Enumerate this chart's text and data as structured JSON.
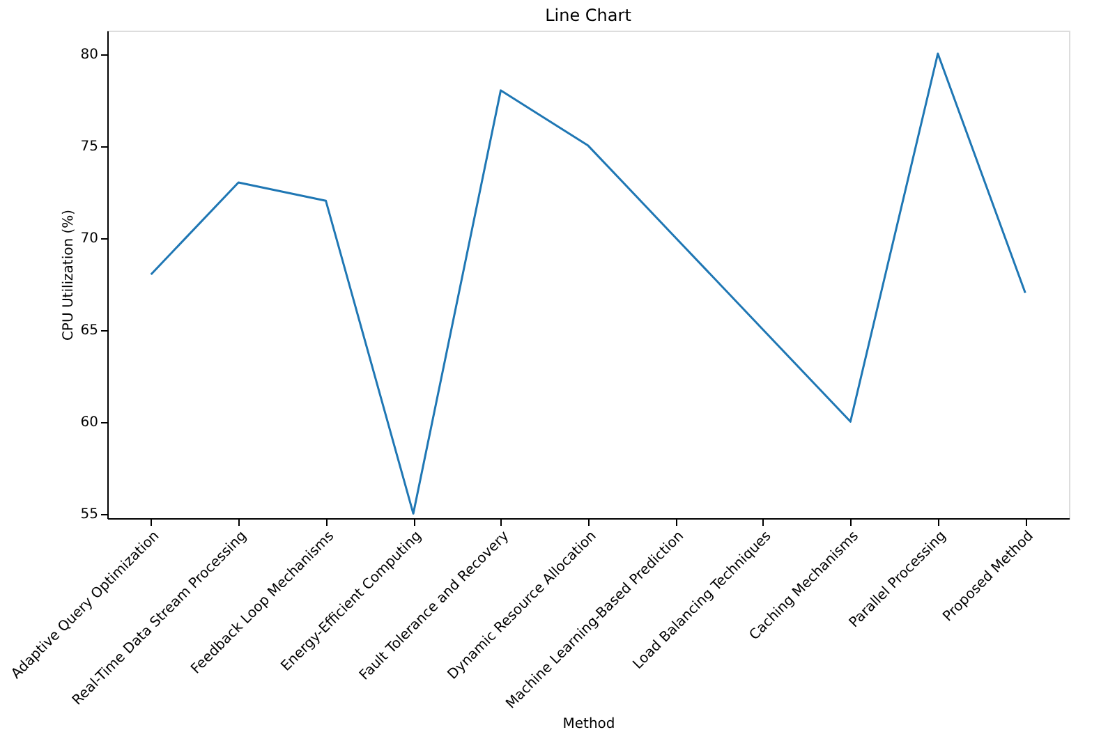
{
  "chart_data": {
    "type": "line",
    "title": "Line Chart",
    "xlabel": "Method",
    "ylabel": "CPU Utilization (%)",
    "categories": [
      "Adaptive Query Optimization",
      "Real-Time Data Stream Processing",
      "Feedback Loop Mechanisms",
      "Energy-Efficient Computing",
      "Fault Tolerance and Recovery",
      "Dynamic Resource Allocation",
      "Machine Learning-Based Prediction",
      "Load Balancing Techniques",
      "Caching Mechanisms",
      "Parallel Processing",
      "Proposed Method"
    ],
    "series": [
      {
        "color": "#1f77b4",
        "values": [
          68,
          73,
          72,
          55,
          78,
          75,
          70,
          65,
          60,
          80,
          67
        ]
      }
    ],
    "ylim": [
      54.75,
      81.25
    ],
    "yticks": [
      55,
      60,
      65,
      70,
      75,
      80
    ],
    "grid": false,
    "legend": false,
    "marker": "none",
    "line_style": "solid"
  }
}
